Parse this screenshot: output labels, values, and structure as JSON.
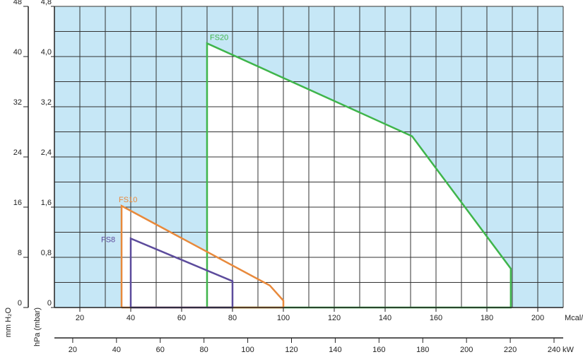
{
  "chart_data": {
    "type": "line",
    "ylabel": "hPa (mbar)",
    "y2label": "mm H₂O",
    "xlabel": "Mcal/h",
    "x2label": "kW",
    "xlim": [
      10,
      210
    ],
    "xticks": [
      20,
      40,
      60,
      80,
      100,
      120,
      140,
      160,
      180,
      200
    ],
    "xgrid_step": 10,
    "ylim": [
      0,
      4.8
    ],
    "yticks": [
      {
        "value": 0,
        "label": "0"
      },
      {
        "value": 0.8,
        "label": "0,8"
      },
      {
        "value": 1.6,
        "label": "1,6"
      },
      {
        "value": 2.4,
        "label": "2,4"
      },
      {
        "value": 3.2,
        "label": "3,2"
      },
      {
        "value": 4.0,
        "label": "4,0"
      },
      {
        "value": 4.8,
        "label": "4,8"
      }
    ],
    "ygrid_step": 0.4,
    "y2lim": [
      0,
      48
    ],
    "y2ticks": [
      0,
      8,
      16,
      24,
      32,
      40,
      48
    ],
    "x2lim": [
      11.63,
      244.2
    ],
    "x2ticks": [
      20,
      40,
      60,
      80,
      100,
      120,
      140,
      160,
      180,
      200,
      220,
      240
    ],
    "grid": true,
    "background_color": "#c6e7f6",
    "series": [
      {
        "name": "FS20",
        "color": "#3fb54b",
        "x": [
          70,
          70,
          150.6,
          189.4,
          189.4,
          70
        ],
        "values": [
          0,
          4.21,
          2.73,
          0.62,
          0,
          0
        ]
      },
      {
        "name": "FS10",
        "color": "#e8893b",
        "x": [
          36.4,
          36.4,
          94.7,
          100,
          100,
          36.4
        ],
        "values": [
          0,
          1.62,
          0.35,
          0.11,
          0,
          0
        ]
      },
      {
        "name": "FS8",
        "color": "#5c4b9c",
        "x": [
          40,
          40,
          80,
          80,
          40
        ],
        "values": [
          0,
          1.1,
          0.42,
          0,
          0
        ]
      }
    ]
  }
}
